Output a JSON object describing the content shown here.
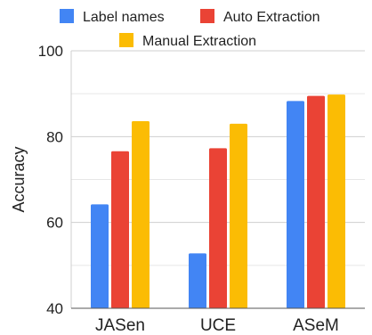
{
  "chart_data": {
    "type": "bar",
    "ylabel": "Accuracy",
    "ylim": [
      40,
      100
    ],
    "yticks": [
      40,
      60,
      80,
      100
    ],
    "categories": [
      "JASen",
      "UCE",
      "ASeM"
    ],
    "series": [
      {
        "name": "Label names",
        "color": "#4285F4",
        "values": [
          64.2,
          52.8,
          88.3
        ]
      },
      {
        "name": "Auto Extraction",
        "color": "#EA4335",
        "values": [
          76.6,
          77.3,
          89.5
        ]
      },
      {
        "name": "Manual Extraction",
        "color": "#FBBC04",
        "values": [
          83.6,
          83.0,
          89.8
        ]
      }
    ],
    "grid": true,
    "legend": "top"
  }
}
